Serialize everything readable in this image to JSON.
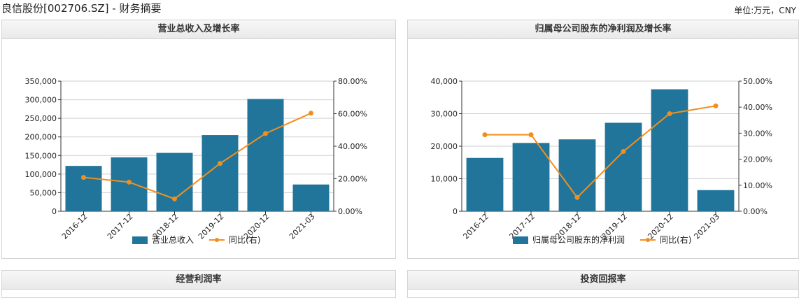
{
  "page": {
    "title": "良信股份[002706.SZ] - 财务摘要",
    "unit": "单位:万元，CNY"
  },
  "colors": {
    "bar": "#21759b",
    "line": "#f28f1c",
    "grid": "#cfcfcf",
    "axis": "#333333"
  },
  "panels": {
    "revenue": {
      "title": "营业总收入及增长率"
    },
    "profit": {
      "title": "归属母公司股东的净利润及增长率"
    },
    "op_margin": {
      "title": "经营利润率"
    },
    "roi": {
      "title": "投资回报率"
    }
  },
  "chart_data": [
    {
      "type": "bar",
      "title": "营业总收入及增长率",
      "categories": [
        "2016-12",
        "2017-12",
        "2018-12",
        "2019-12",
        "2020-12",
        "2021-03"
      ],
      "series": [
        {
          "name": "营业总收入",
          "type": "bar",
          "axis": "left",
          "values": [
            122000,
            145000,
            157000,
            205000,
            302000,
            72000
          ]
        },
        {
          "name": "同比(右)",
          "type": "line",
          "axis": "right",
          "values": [
            20.8,
            17.9,
            7.6,
            29.4,
            47.8,
            60.3
          ]
        }
      ],
      "left_axis": {
        "min": 0,
        "max": 350000,
        "step": 50000,
        "tick_labels": [
          "0",
          "50,000",
          "100,000",
          "150,000",
          "200,000",
          "250,000",
          "300,000",
          "350,000"
        ]
      },
      "right_axis": {
        "min": 0,
        "max": 80,
        "step": 20,
        "tick_labels": [
          "0.00%",
          "20.00%",
          "40.00%",
          "60.00%",
          "80.00%"
        ]
      },
      "legend": [
        "营业总收入",
        "同比(右)"
      ],
      "legend_position": "bottom",
      "grid": true
    },
    {
      "type": "bar",
      "title": "归属母公司股东的净利润及增长率",
      "categories": [
        "2016-12",
        "2017-12",
        "2018-12",
        "2019-12",
        "2020-12",
        "2021-03"
      ],
      "series": [
        {
          "name": "归属母公司股东的净利润",
          "type": "bar",
          "axis": "left",
          "values": [
            16400,
            21000,
            22100,
            27200,
            37500,
            6500
          ]
        },
        {
          "name": "同比(右)",
          "type": "line",
          "axis": "right",
          "values": [
            29.4,
            29.4,
            5.3,
            23.0,
            37.5,
            40.5
          ]
        }
      ],
      "left_axis": {
        "min": 0,
        "max": 40000,
        "step": 10000,
        "tick_labels": [
          "0",
          "10,000",
          "20,000",
          "30,000",
          "40,000"
        ]
      },
      "right_axis": {
        "min": 0,
        "max": 50,
        "step": 10,
        "tick_labels": [
          "0.00%",
          "10.00%",
          "20.00%",
          "30.00%",
          "40.00%",
          "50.00%"
        ]
      },
      "legend": [
        "归属母公司股东的净利润",
        "同比(右)"
      ],
      "legend_position": "bottom",
      "grid": true
    }
  ]
}
